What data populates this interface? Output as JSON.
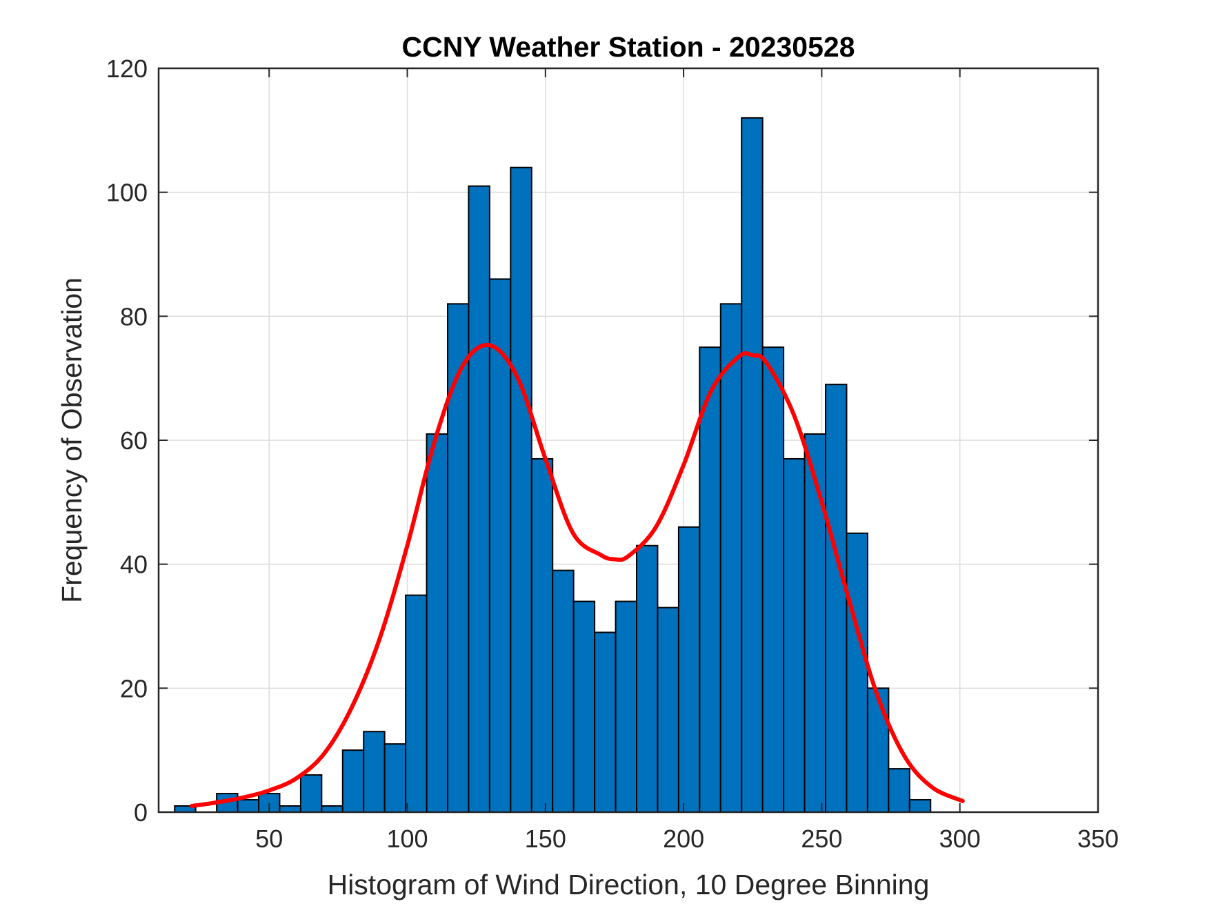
{
  "chart_data": {
    "type": "bar",
    "title": "CCNY Weather Station - 20230528",
    "xlabel": "Histogram of Wind Direction, 10 Degree Binning",
    "ylabel": "Frequency of Observation",
    "xlim": [
      10,
      350
    ],
    "ylim": [
      0,
      120
    ],
    "xticks": [
      50,
      100,
      150,
      200,
      250,
      300,
      350
    ],
    "yticks": [
      0,
      20,
      40,
      60,
      80,
      100,
      120
    ],
    "grid": true,
    "bin_width": 7.6,
    "bins": [
      {
        "center": 19.6,
        "value": 1
      },
      {
        "center": 27.2,
        "value": 0
      },
      {
        "center": 34.8,
        "value": 3
      },
      {
        "center": 42.4,
        "value": 2
      },
      {
        "center": 50.0,
        "value": 3
      },
      {
        "center": 57.6,
        "value": 1
      },
      {
        "center": 65.2,
        "value": 6
      },
      {
        "center": 72.8,
        "value": 1
      },
      {
        "center": 80.4,
        "value": 10
      },
      {
        "center": 88.0,
        "value": 13
      },
      {
        "center": 95.6,
        "value": 11
      },
      {
        "center": 103.2,
        "value": 35
      },
      {
        "center": 110.8,
        "value": 61
      },
      {
        "center": 118.4,
        "value": 82
      },
      {
        "center": 126.0,
        "value": 101
      },
      {
        "center": 133.6,
        "value": 86
      },
      {
        "center": 141.2,
        "value": 104
      },
      {
        "center": 148.8,
        "value": 57
      },
      {
        "center": 156.4,
        "value": 39
      },
      {
        "center": 164.0,
        "value": 34
      },
      {
        "center": 171.6,
        "value": 29
      },
      {
        "center": 179.2,
        "value": 34
      },
      {
        "center": 186.8,
        "value": 43
      },
      {
        "center": 194.4,
        "value": 33
      },
      {
        "center": 202.0,
        "value": 46
      },
      {
        "center": 209.6,
        "value": 75
      },
      {
        "center": 217.2,
        "value": 82
      },
      {
        "center": 224.8,
        "value": 112
      },
      {
        "center": 232.4,
        "value": 75
      },
      {
        "center": 240.0,
        "value": 57
      },
      {
        "center": 247.6,
        "value": 61
      },
      {
        "center": 255.2,
        "value": 69
      },
      {
        "center": 262.8,
        "value": 45
      },
      {
        "center": 270.4,
        "value": 20
      },
      {
        "center": 278.0,
        "value": 7
      },
      {
        "center": 285.6,
        "value": 2
      }
    ],
    "fit_curve": {
      "name": "fit",
      "x": [
        22,
        30,
        40,
        50,
        60,
        70,
        80,
        90,
        100,
        110,
        120,
        130,
        140,
        150,
        160,
        170,
        175,
        180,
        190,
        200,
        210,
        220,
        225,
        230,
        240,
        250,
        260,
        270,
        280,
        290,
        301
      ],
      "y": [
        1,
        1.5,
        2.3,
        3.5,
        5.5,
        9.5,
        17,
        28,
        43,
        60,
        72,
        75.3,
        70,
        57,
        45,
        41.5,
        40.8,
        41.3,
        46,
        56,
        68,
        73.5,
        73.7,
        72.5,
        64,
        50,
        34,
        19,
        9,
        4,
        1.8
      ]
    },
    "colors": {
      "bar_fill": "#0072BD",
      "bar_edge": "#000000",
      "fit_line": "#FF0000",
      "grid": "#DCDCDC",
      "axis": "#262626"
    }
  }
}
